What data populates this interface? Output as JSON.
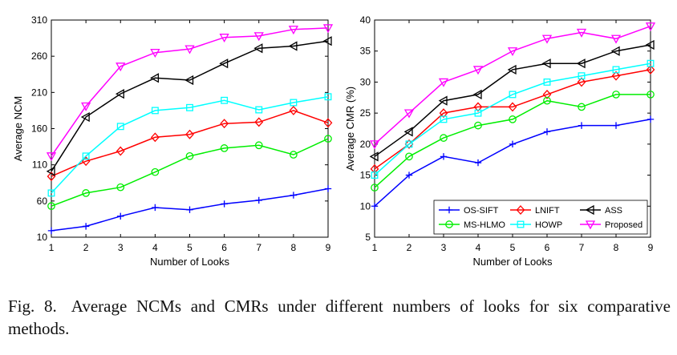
{
  "caption": {
    "label": "Fig. 8.",
    "text": "Average NCMs and CMRs under different numbers of looks for six comparative methods."
  },
  "chart_data": [
    {
      "type": "line",
      "title": "",
      "xlabel": "Number of Looks",
      "ylabel": "Average NCM",
      "x": [
        1,
        2,
        3,
        4,
        5,
        6,
        7,
        8,
        9
      ],
      "xlim": [
        1,
        9
      ],
      "ylim": [
        10,
        310
      ],
      "yticks": [
        10,
        60,
        110,
        160,
        210,
        260,
        310
      ],
      "grid": false,
      "series": [
        {
          "name": "OS-SIFT",
          "color": "#0000ff",
          "marker": "plus",
          "values": [
            19,
            25,
            39,
            51,
            48,
            56,
            61,
            68,
            77
          ]
        },
        {
          "name": "LNIFT",
          "color": "#ff0000",
          "marker": "diamond",
          "values": [
            94,
            115,
            129,
            148,
            152,
            167,
            169,
            185,
            168
          ]
        },
        {
          "name": "ASS",
          "color": "#000000",
          "marker": "triangle-left",
          "values": [
            101,
            176,
            208,
            230,
            227,
            250,
            271,
            274,
            281
          ]
        },
        {
          "name": "MS-HLMO",
          "color": "#00ee00",
          "marker": "circle",
          "values": [
            53,
            71,
            79,
            100,
            122,
            133,
            137,
            124,
            146
          ]
        },
        {
          "name": "HOWP",
          "color": "#00ffff",
          "marker": "square",
          "values": [
            71,
            122,
            163,
            185,
            189,
            199,
            186,
            196,
            204
          ]
        },
        {
          "name": "Proposed",
          "color": "#ff00ff",
          "marker": "triangle-down",
          "values": [
            122,
            191,
            246,
            265,
            270,
            286,
            288,
            297,
            299
          ]
        }
      ]
    },
    {
      "type": "line",
      "title": "",
      "xlabel": "Number of Looks",
      "ylabel": "Average CMR (%)",
      "x": [
        1,
        2,
        3,
        4,
        5,
        6,
        7,
        8,
        9
      ],
      "xlim": [
        1,
        9
      ],
      "ylim": [
        5,
        40
      ],
      "yticks": [
        5,
        10,
        15,
        20,
        25,
        30,
        35,
        40
      ],
      "grid": false,
      "legend": "bottom-right",
      "series": [
        {
          "name": "OS-SIFT",
          "color": "#0000ff",
          "marker": "plus",
          "values": [
            10,
            15,
            18,
            17,
            20,
            22,
            23,
            23,
            24
          ]
        },
        {
          "name": "LNIFT",
          "color": "#ff0000",
          "marker": "diamond",
          "values": [
            16,
            20,
            25,
            26,
            26,
            28,
            30,
            31,
            32
          ]
        },
        {
          "name": "ASS",
          "color": "#000000",
          "marker": "triangle-left",
          "values": [
            18,
            22,
            27,
            28,
            32,
            33,
            33,
            35,
            36
          ]
        },
        {
          "name": "MS-HLMO",
          "color": "#00ee00",
          "marker": "circle",
          "values": [
            13,
            18,
            21,
            23,
            24,
            27,
            26,
            28,
            28
          ]
        },
        {
          "name": "HOWP",
          "color": "#00ffff",
          "marker": "square",
          "values": [
            15,
            20,
            24,
            25,
            28,
            30,
            31,
            32,
            33
          ]
        },
        {
          "name": "Proposed",
          "color": "#ff00ff",
          "marker": "triangle-down",
          "values": [
            20,
            25,
            30,
            32,
            35,
            37,
            38,
            37,
            39
          ]
        }
      ]
    }
  ]
}
